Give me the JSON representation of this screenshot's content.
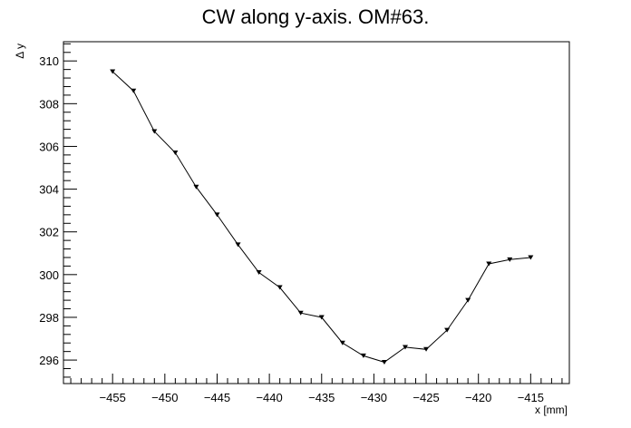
{
  "chart_data": {
    "type": "line",
    "title": "CW along y-axis. OM#63.",
    "xlabel": "x [mm]",
    "ylabel": "Δ y",
    "xlim": [
      -459.7,
      -411.3
    ],
    "ylim": [
      294.9,
      310.9
    ],
    "x_ticks": [
      -455,
      -450,
      -445,
      -440,
      -435,
      -430,
      -425,
      -420,
      -415
    ],
    "y_ticks": [
      296,
      298,
      300,
      302,
      304,
      306,
      308,
      310
    ],
    "grid": false,
    "marker": "down-triangle",
    "series": [
      {
        "x": [
          -455,
          -453,
          -451,
          -449,
          -447,
          -445,
          -443,
          -441,
          -439,
          -437,
          -435,
          -433,
          -431,
          -429,
          -427,
          -425,
          -423,
          -421,
          -419,
          -417,
          -415
        ],
        "y": [
          309.5,
          308.6,
          306.7,
          305.7,
          304.1,
          302.8,
          301.4,
          300.1,
          299.4,
          298.2,
          298.0,
          296.8,
          296.2,
          295.9,
          296.6,
          296.5,
          297.4,
          298.8,
          300.5,
          300.7,
          300.8
        ]
      }
    ]
  }
}
